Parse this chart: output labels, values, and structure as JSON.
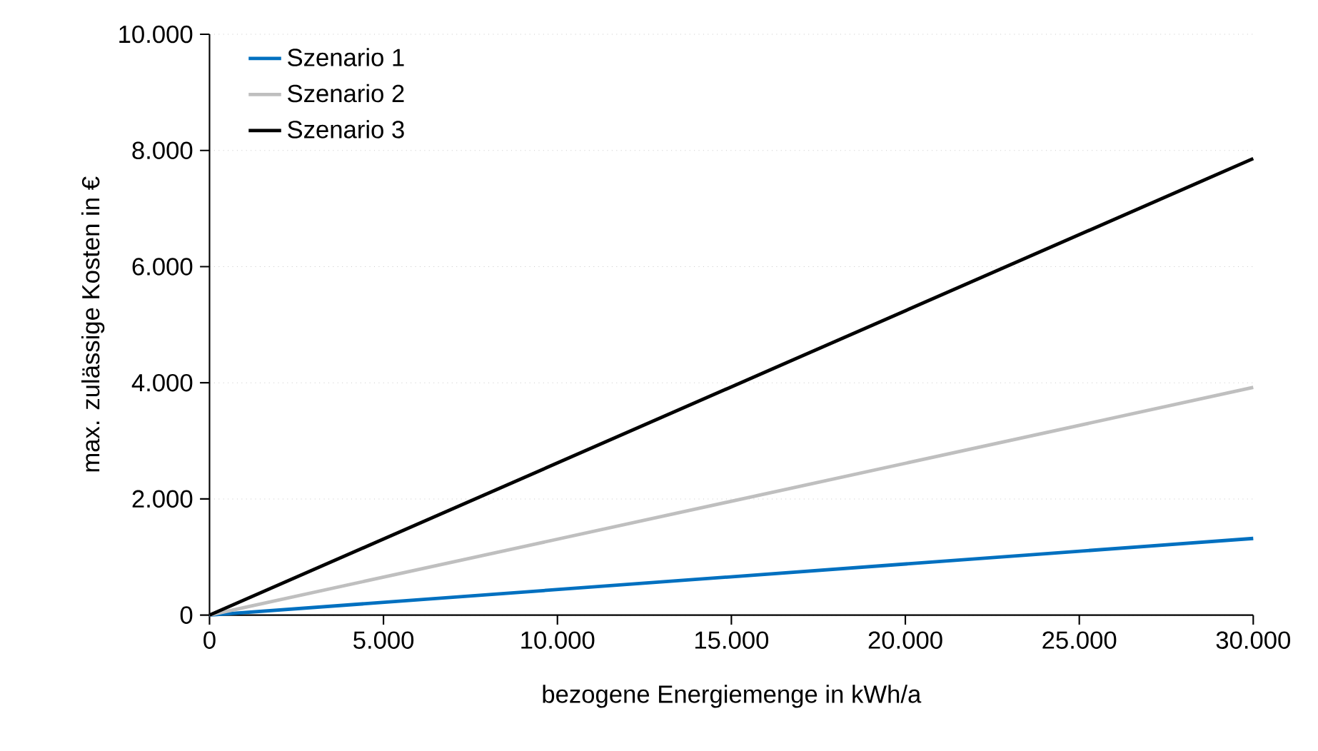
{
  "chart_data": {
    "type": "line",
    "xlabel": "bezogene Energiemenge in kWh/a",
    "ylabel": "max. zulässige Kosten in €",
    "x": [
      0,
      30000
    ],
    "series": [
      {
        "name": "Szenario 1",
        "color": "#0070c0",
        "values": [
          0,
          1320
        ]
      },
      {
        "name": "Szenario 2",
        "color": "#bfbfbf",
        "values": [
          0,
          3920
        ]
      },
      {
        "name": "Szenario 3",
        "color": "#000000",
        "values": [
          0,
          7860
        ]
      }
    ],
    "xlim": [
      0,
      30000
    ],
    "ylim": [
      0,
      10000
    ],
    "xticks": [
      0,
      {
        "value": 5000,
        "label": "5.000"
      },
      {
        "value": 10000,
        "label": "10.000"
      },
      {
        "value": 15000,
        "label": "15.000"
      },
      {
        "value": 20000,
        "label": "20.000"
      },
      {
        "value": 25000,
        "label": "25.000"
      },
      {
        "value": 30000,
        "label": "30.000"
      }
    ],
    "yticks": [
      0,
      {
        "value": 2000,
        "label": "2.000"
      },
      {
        "value": 4000,
        "label": "4.000"
      },
      {
        "value": 6000,
        "label": "6.000"
      },
      {
        "value": 8000,
        "label": "8.000"
      },
      {
        "value": 10000,
        "label": "10.000"
      }
    ],
    "grid": "y",
    "legend": "top left",
    "marker": "none",
    "line_style": "solid"
  }
}
